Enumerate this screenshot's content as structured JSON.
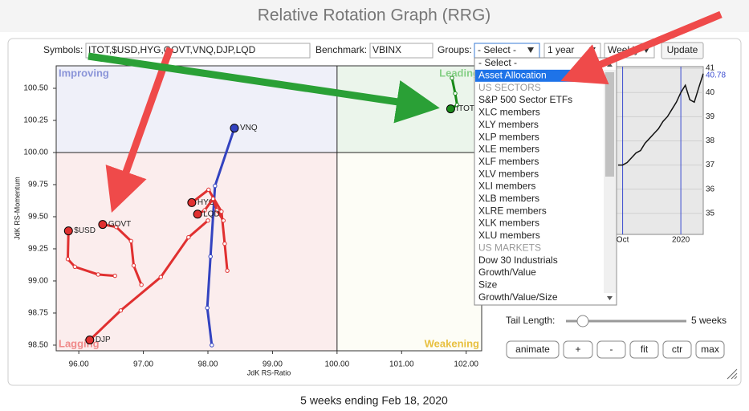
{
  "title": "Relative Rotation Graph (RRG)",
  "controls": {
    "symbols_label": "Symbols:",
    "symbols": "ITOT,$USD,HYG,GOVT,VNQ,DJP,LQD",
    "benchmark_label": "Benchmark:",
    "benchmark": "VBINX",
    "groups_label": "Groups:",
    "groups": "- Select -",
    "period": "1 year",
    "frequency": "Weekly",
    "update": "Update"
  },
  "dropdown": {
    "options": [
      {
        "label": "- Select -"
      },
      {
        "label": "Asset Allocation",
        "selected": true
      },
      {
        "label": "US SECTORS",
        "group": true
      },
      {
        "label": "S&P 500 Sector ETFs"
      },
      {
        "label": "XLC members"
      },
      {
        "label": "XLY members"
      },
      {
        "label": "XLP members"
      },
      {
        "label": "XLE members"
      },
      {
        "label": "XLF members"
      },
      {
        "label": "XLV members"
      },
      {
        "label": "XLI members"
      },
      {
        "label": "XLB members"
      },
      {
        "label": "XLRE members"
      },
      {
        "label": "XLK members"
      },
      {
        "label": "XLU members"
      },
      {
        "label": "US MARKETS",
        "group": true
      },
      {
        "label": "Dow 30 Industrials"
      },
      {
        "label": "Growth/Value"
      },
      {
        "label": "Size"
      },
      {
        "label": "Growth/Value/Size"
      }
    ]
  },
  "chart_data": [
    {
      "type": "rrg",
      "x_label": "JdK RS-Ratio",
      "y_label": "JdK RS-Momentum",
      "xlim": [
        95.65,
        102.24
      ],
      "ylim": [
        98.456,
        100.675
      ],
      "center": [
        100,
        100
      ],
      "xticks": [
        {
          "value": 96,
          "label": "96.00"
        },
        {
          "value": 97,
          "label": "97.00"
        },
        {
          "value": 98,
          "label": "98.00"
        },
        {
          "value": 99,
          "label": "99.00"
        },
        {
          "value": 100,
          "label": "100.00"
        },
        {
          "value": 101,
          "label": "101.00"
        },
        {
          "value": 102,
          "label": "102.00"
        }
      ],
      "yticks": [
        {
          "value": 98.5,
          "label": "98.50"
        },
        {
          "value": 98.75,
          "label": "98.75"
        },
        {
          "value": 99,
          "label": "99.00"
        },
        {
          "value": 99.25,
          "label": "99.25"
        },
        {
          "value": 99.5,
          "label": "99.50"
        },
        {
          "value": 99.75,
          "label": "99.75"
        },
        {
          "value": 100,
          "label": "100.00"
        },
        {
          "value": 100.25,
          "label": "100.25"
        },
        {
          "value": 100.5,
          "label": "100.50"
        }
      ],
      "quadrants": [
        {
          "name": "Improving",
          "color": "#8a94d8",
          "background": "#eff0f9"
        },
        {
          "name": "Leading",
          "color": "#86cf86",
          "background": "#ebf5eb"
        },
        {
          "name": "Weakening",
          "color": "#e8c040",
          "background": "#fdfdf6"
        },
        {
          "name": "Lagging",
          "color": "#f08a8a",
          "background": "#fbeded"
        }
      ],
      "series": [
        {
          "name": "VNQ",
          "color": "#3343c0",
          "x": [
            98.06,
            97.99,
            98.04,
            98.11,
            98.41
          ],
          "y": [
            98.5,
            98.79,
            99.19,
            99.74,
            100.19
          ]
        },
        {
          "name": "$USD",
          "color": "#e03030",
          "x": [
            96.56,
            96.3,
            95.94,
            95.83,
            95.84
          ],
          "y": [
            99.04,
            99.05,
            99.11,
            99.17,
            99.39
          ]
        },
        {
          "name": "GOVT",
          "color": "#e03030",
          "x": [
            96.97,
            96.85,
            96.81,
            96.58,
            96.37
          ],
          "y": [
            98.97,
            99.12,
            99.31,
            99.42,
            99.44
          ]
        },
        {
          "name": "DJP",
          "color": "#e03030",
          "x": [
            98.0,
            97.7,
            97.27,
            96.65,
            96.17
          ],
          "y": [
            99.47,
            99.34,
            99.03,
            98.77,
            98.54
          ]
        },
        {
          "name": "HYG",
          "color": "#e03030",
          "x": [
            98.3,
            98.26,
            98.21,
            98.01,
            97.75
          ],
          "y": [
            99.08,
            99.29,
            99.54,
            99.71,
            99.61
          ]
        },
        {
          "name": "LQD",
          "color": "#e03030",
          "x": [
            98.24,
            98.14,
            98.08,
            97.95,
            97.84
          ],
          "y": [
            99.47,
            99.55,
            99.64,
            99.55,
            99.52
          ]
        },
        {
          "name": "ITOT",
          "color": "#1a8a1a",
          "x": [
            101.78,
            101.83,
            101.86,
            101.76
          ],
          "y": [
            100.58,
            100.46,
            100.37,
            100.34
          ]
        }
      ]
    },
    {
      "type": "line",
      "color": "#111111",
      "categories": [
        null,
        "Oct",
        null,
        null,
        null,
        null,
        null,
        null,
        null,
        null,
        null,
        null,
        null,
        null,
        "2020",
        null,
        null,
        null,
        null,
        null
      ],
      "values": [
        37.0,
        37.0,
        37.1,
        37.3,
        37.5,
        37.6,
        37.9,
        38.1,
        38.3,
        38.5,
        38.8,
        39.0,
        39.3,
        39.6,
        40.0,
        40.3,
        39.7,
        39.6,
        40.2,
        40.78
      ],
      "value_labels": [
        null,
        null,
        null,
        null,
        null,
        null,
        null,
        null,
        null,
        null,
        null,
        null,
        null,
        null,
        null,
        null,
        null,
        null,
        null,
        "40.78"
      ],
      "ylim": [
        34.13,
        41.07
      ],
      "yticks": [
        35,
        36,
        37,
        38,
        39,
        40,
        41
      ]
    }
  ],
  "tail_length": {
    "label": "Tail Length:",
    "value": "5 weeks"
  },
  "buttons": [
    "animate",
    "+",
    "-",
    "fit",
    "ctr",
    "max"
  ],
  "footer": "5 weeks ending Feb 18, 2020"
}
